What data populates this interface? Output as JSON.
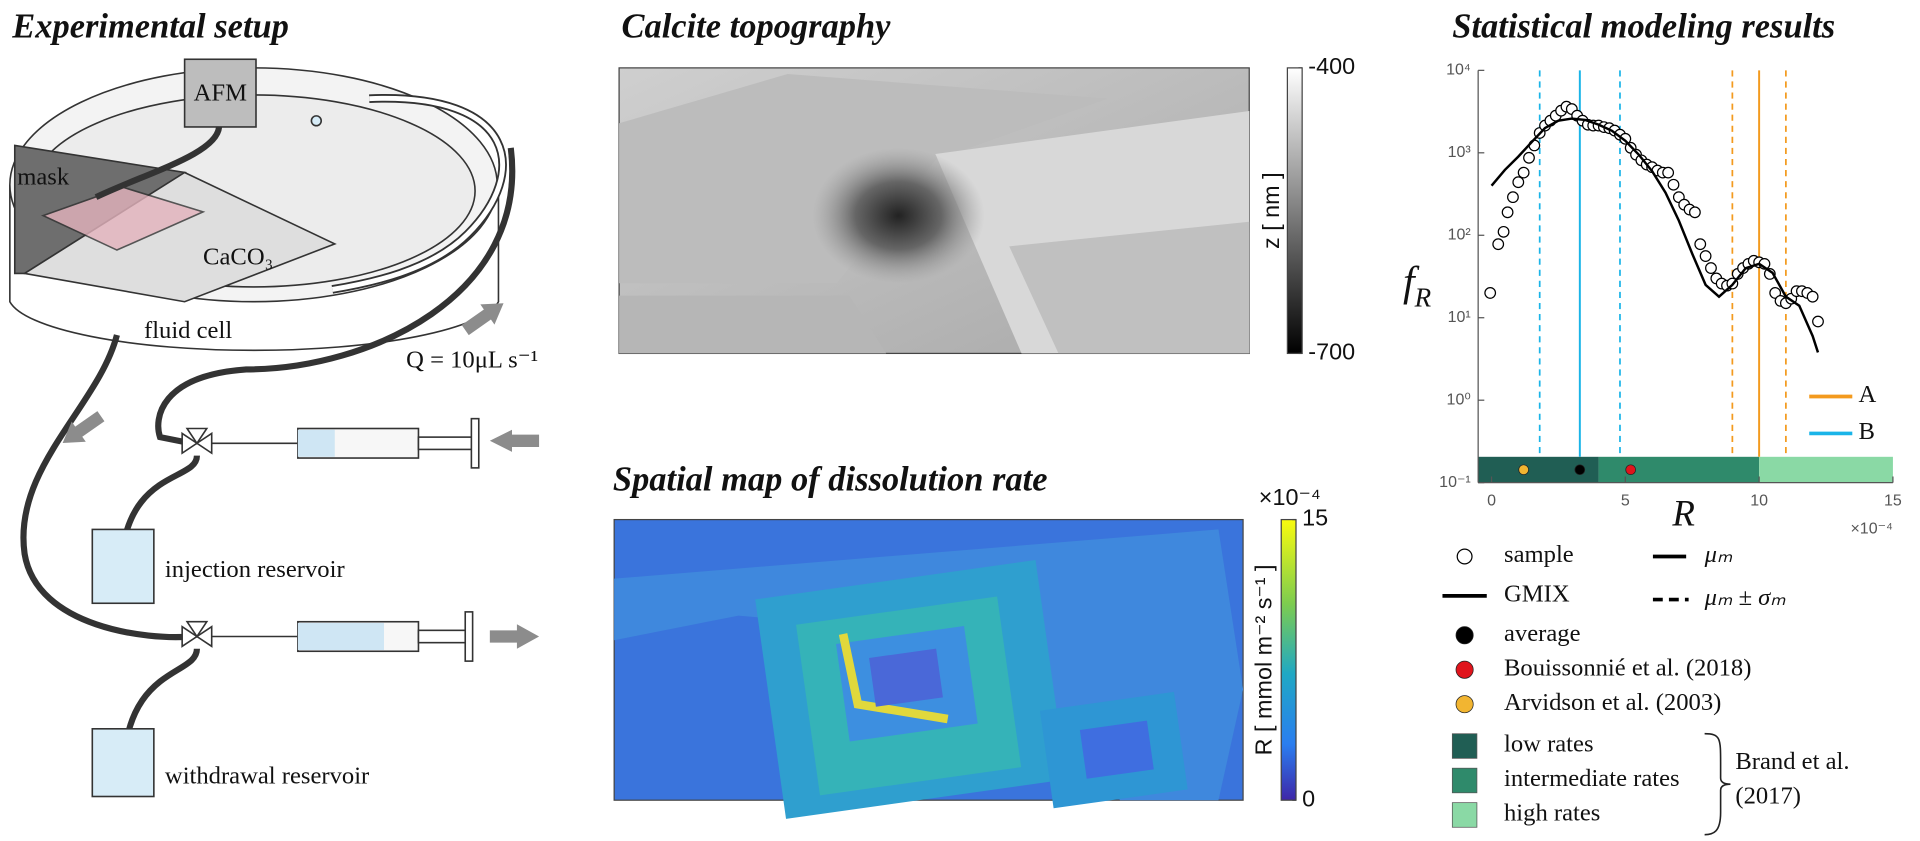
{
  "setup": {
    "title": "Experimental setup",
    "labels": {
      "afm": "AFM",
      "mask": "mask",
      "caco3": "CaCO₃",
      "fluid_cell": "fluid cell",
      "flow": "Q = 10μL s⁻¹",
      "injection": "injection reservoir",
      "withdrawal": "withdrawal reservoir"
    }
  },
  "topography": {
    "title": "Calcite topography",
    "colorbar": {
      "label": "z [ nm ]",
      "lim": [
        -700,
        -400
      ],
      "ticks": [
        -400,
        -700
      ]
    }
  },
  "rate_map": {
    "title": "Spatial map of dissolution rate",
    "colorbar": {
      "label": "R [ mmol m⁻² s⁻¹ ]",
      "multiplier": "×10⁻⁴",
      "lim": [
        0,
        15
      ],
      "ticks": [
        15,
        0
      ]
    }
  },
  "chart_data": {
    "type": "scatter",
    "title": "Statistical modeling results",
    "xlabel": "R",
    "x_multiplier": "×10⁻⁴",
    "ylabel": "f",
    "ylabel_sub": "R",
    "log_y": true,
    "xlim": [
      -0.5,
      15
    ],
    "ylim": [
      0.1,
      10000
    ],
    "xticks": [
      0,
      5,
      10,
      15
    ],
    "yticks": [
      {
        "value": 0.1,
        "label": "10⁻¹"
      },
      {
        "value": 1,
        "label": "10⁰"
      },
      {
        "value": 10,
        "label": "10¹"
      },
      {
        "value": 100,
        "label": "10²"
      },
      {
        "value": 1000,
        "label": "10³"
      },
      {
        "value": 10000,
        "label": "10⁴"
      }
    ],
    "series": [
      {
        "name": "sample",
        "color": "#000000",
        "marker": "circle",
        "x": [
          -0.05,
          0.25,
          0.45,
          0.6,
          0.8,
          1.0,
          1.2,
          1.4,
          1.6,
          1.8,
          2.0,
          2.2,
          2.4,
          2.6,
          2.8,
          3.0,
          3.2,
          3.4,
          3.6,
          3.8,
          4.0,
          4.2,
          4.4,
          4.6,
          4.8,
          5.0,
          5.2,
          5.4,
          5.6,
          5.8,
          6.0,
          6.2,
          6.4,
          6.6,
          6.8,
          7.0,
          7.2,
          7.4,
          7.6,
          7.8,
          8.0,
          8.2,
          8.4,
          8.6,
          8.8,
          9.0,
          9.2,
          9.4,
          9.6,
          9.8,
          10.0,
          10.2,
          10.4,
          10.6,
          10.8,
          11.0,
          11.2,
          11.4,
          11.6,
          11.8,
          12.0,
          12.2
        ],
        "values": [
          20,
          78,
          110,
          190,
          290,
          440,
          575,
          870,
          1230,
          1740,
          2140,
          2450,
          2820,
          3240,
          3630,
          3390,
          2820,
          2450,
          2190,
          2140,
          2140,
          2050,
          1990,
          1860,
          1660,
          1480,
          1150,
          950,
          810,
          720,
          670,
          610,
          575,
          575,
          410,
          290,
          235,
          205,
          190,
          78,
          56,
          40,
          30,
          26,
          24.5,
          26,
          34,
          40,
          45,
          49,
          47,
          45,
          34,
          20,
          16,
          15,
          17,
          21,
          21,
          20,
          18,
          9
        ]
      },
      {
        "name": "GMIX",
        "color": "#000000",
        "marker": "line",
        "x": [
          0,
          0.5,
          1,
          1.5,
          2,
          2.5,
          3,
          3.5,
          4,
          4.5,
          5,
          5.5,
          6,
          6.5,
          7,
          7.5,
          8,
          8.5,
          9,
          9.5,
          10,
          10.5,
          11,
          11.5,
          12,
          12.2
        ],
        "values": [
          400,
          620,
          900,
          1350,
          2000,
          2450,
          2600,
          2500,
          2200,
          1850,
          1400,
          950,
          600,
          330,
          150,
          60,
          25,
          18,
          25,
          40,
          45,
          35,
          18,
          14,
          6,
          3.8
        ]
      }
    ],
    "modes": [
      {
        "name": "A",
        "color": "#f39a1e",
        "mean": 10,
        "std": 1
      },
      {
        "name": "B",
        "color": "#1ab4e8",
        "mean": 3.3,
        "std": 1.5
      }
    ],
    "mode_legend": {
      "mean": "μₘ",
      "spread": "μₘ ± σₘ"
    },
    "references": [
      {
        "name": "average",
        "color": "#000000",
        "x": 3.3
      },
      {
        "name": "Bouissonnié et al. (2018)",
        "color": "#e0141c",
        "x": 5.2
      },
      {
        "name": "Arvidson et al. (2003)",
        "color": "#f2b531",
        "x": 1.2
      }
    ],
    "rate_ranges": {
      "source": [
        "Brand et al.",
        "(2017)"
      ],
      "ranges": [
        {
          "name": "low rates",
          "color": "#205e54",
          "from": -0.5,
          "to": 4
        },
        {
          "name": "intermediate rates",
          "color": "#2f8a6b",
          "from": 4,
          "to": 10
        },
        {
          "name": "high rates",
          "color": "#8ad9a5",
          "from": 10,
          "to": 15
        }
      ]
    }
  }
}
